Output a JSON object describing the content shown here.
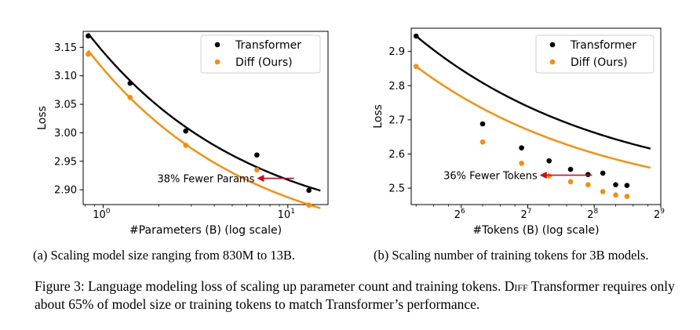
{
  "chart_data": [
    {
      "type": "scatter",
      "x_scale": "log10",
      "xlabel": "#Parameters (B) (log scale)",
      "ylabel": "Loss",
      "xlim": [
        0.78,
        16.5
      ],
      "ylim": [
        2.874,
        3.178
      ],
      "xticks": [
        {
          "value": 1,
          "base": "10",
          "exp": "0"
        },
        {
          "value": 10,
          "base": "10",
          "exp": "1"
        }
      ],
      "yticks": [
        {
          "value": 2.9,
          "label": "2.90"
        },
        {
          "value": 2.95,
          "label": "2.95"
        },
        {
          "value": 3.0,
          "label": "3.00"
        },
        {
          "value": 3.05,
          "label": "3.05"
        },
        {
          "value": 3.1,
          "label": "3.10"
        },
        {
          "value": 3.15,
          "label": "3.15"
        }
      ],
      "legend_position": "top-right",
      "series": [
        {
          "name": "Transformer",
          "color": "#000000",
          "x": [
            0.83,
            1.4,
            2.8,
            6.8,
            13.0
          ],
          "y": [
            3.17,
            3.087,
            3.003,
            2.961,
            2.899
          ],
          "fit_x": [
            0.83,
            15.0
          ],
          "fit_a": 2.8137,
          "fit_b": 0.3463,
          "fit_k": 0.9
        },
        {
          "name": "Diff (Ours)",
          "color": "#ff8c00",
          "x": [
            0.83,
            1.4,
            2.8,
            6.8,
            13.0
          ],
          "y": [
            3.138,
            3.062,
            2.978,
            2.935,
            2.873
          ],
          "fit_x": [
            0.83,
            15.0
          ],
          "fit_a": 2.7825,
          "fit_b": 0.3476,
          "fit_k": 0.9
        }
      ],
      "annotation": {
        "text": "38% Fewer Params",
        "from": [
          10.8,
          2.92
        ],
        "to": [
          6.8,
          2.92
        ],
        "color": "#e0001b"
      }
    },
    {
      "type": "scatter",
      "x_scale": "log2",
      "xlabel": "#Tokens (B) (log scale)",
      "ylabel": "Loss",
      "xlim": [
        38,
        512
      ],
      "ylim": [
        2.452,
        2.968
      ],
      "xticks": [
        {
          "value": 64,
          "base": "2",
          "exp": "6"
        },
        {
          "value": 128,
          "base": "2",
          "exp": "7"
        },
        {
          "value": 256,
          "base": "2",
          "exp": "8"
        },
        {
          "value": 512,
          "base": "2",
          "exp": "9"
        }
      ],
      "yticks": [
        {
          "value": 2.5,
          "label": "2.5"
        },
        {
          "value": 2.6,
          "label": "2.6"
        },
        {
          "value": 2.7,
          "label": "2.7"
        },
        {
          "value": 2.8,
          "label": "2.8"
        },
        {
          "value": 2.9,
          "label": "2.9"
        }
      ],
      "legend_position": "top-right",
      "series": [
        {
          "name": "Transformer",
          "color": "#000000",
          "x": [
            40,
            80,
            120,
            160,
            200,
            240,
            280,
            320,
            360
          ],
          "y": [
            2.945,
            2.688,
            2.618,
            2.58,
            2.555,
            2.54,
            2.544,
            2.51,
            2.508
          ],
          "fit_x": [
            40,
            460
          ],
          "fit_a": 2.478,
          "fit_b": 0.467,
          "fit_k": 40
        },
        {
          "name": "Diff (Ours)",
          "color": "#ff8c00",
          "x": [
            40,
            80,
            120,
            160,
            200,
            240,
            280,
            320,
            360
          ],
          "y": [
            2.856,
            2.635,
            2.573,
            2.536,
            2.519,
            2.51,
            2.49,
            2.48,
            2.476
          ],
          "fit_x": [
            40,
            460
          ],
          "fit_a": 2.436,
          "fit_b": 0.42,
          "fit_k": 40
        }
      ],
      "annotation": {
        "text": "36% Fewer Tokens",
        "from": [
          250,
          2.538
        ],
        "to": [
          145,
          2.538
        ],
        "color": "#e0001b"
      }
    }
  ],
  "captions": {
    "a": "(a) Scaling model size ranging from 830M to 13B.",
    "b": "(b) Scaling number of training tokens for 3B models."
  },
  "figure_caption": {
    "prefix": "Figure 3: Language modeling loss of scaling up parameter count and training tokens. ",
    "diff_word": "Diff",
    "suffix": " Transformer requires only about 65% of model size or training tokens to match Transformer’s performance."
  }
}
